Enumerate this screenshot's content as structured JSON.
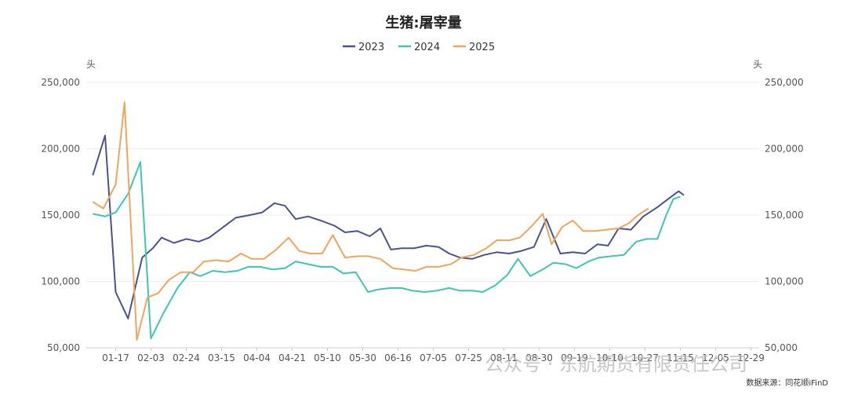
{
  "watermark": "公众号 · 东航期货有限责任公司",
  "source": "数据来源：同花顺iFinD",
  "chart_data": {
    "type": "line",
    "title": "生猪:屠宰量",
    "ylabel_left": "头",
    "ylabel_right": "头",
    "ylim": [
      50000,
      250000
    ],
    "yticks": [
      50000,
      100000,
      150000,
      200000,
      250000
    ],
    "ytick_labels": [
      "50,000",
      "100,000",
      "150,000",
      "200,000",
      "250,000"
    ],
    "x_labels": [
      "01-17",
      "02-03",
      "02-24",
      "03-15",
      "04-04",
      "04-21",
      "05-10",
      "05-30",
      "06-16",
      "07-05",
      "07-25",
      "08-11",
      "08-30",
      "09-19",
      "10-10",
      "10-27",
      "11-15",
      "12-05",
      "12-29"
    ],
    "x_label_positions": [
      1,
      3,
      5,
      7,
      9,
      11,
      13,
      15,
      17,
      19,
      21,
      23,
      25,
      27,
      29,
      31,
      33,
      35,
      37
    ],
    "x_count": 38,
    "grid": true,
    "legend_position": "top-center",
    "series": [
      {
        "name": "2023",
        "color": "#4a5290",
        "points": [
          [
            -0.3,
            180000
          ],
          [
            0.4,
            210000
          ],
          [
            1.0,
            92000
          ],
          [
            1.7,
            72000
          ],
          [
            2.5,
            118000
          ],
          [
            3.1,
            125000
          ],
          [
            3.6,
            133000
          ],
          [
            4.3,
            129000
          ],
          [
            5.0,
            132000
          ],
          [
            5.7,
            130000
          ],
          [
            6.3,
            133000
          ],
          [
            7.1,
            141000
          ],
          [
            7.8,
            148000
          ],
          [
            8.6,
            150000
          ],
          [
            9.3,
            152000
          ],
          [
            10.0,
            159000
          ],
          [
            10.6,
            157000
          ],
          [
            11.2,
            147000
          ],
          [
            11.9,
            149000
          ],
          [
            12.6,
            146000
          ],
          [
            13.4,
            142000
          ],
          [
            14.0,
            137000
          ],
          [
            14.7,
            138000
          ],
          [
            15.4,
            134000
          ],
          [
            16.0,
            140000
          ],
          [
            16.6,
            124000
          ],
          [
            17.2,
            125000
          ],
          [
            17.9,
            125000
          ],
          [
            18.6,
            127000
          ],
          [
            19.3,
            126000
          ],
          [
            19.9,
            121000
          ],
          [
            20.5,
            118000
          ],
          [
            21.2,
            117000
          ],
          [
            21.9,
            120000
          ],
          [
            22.6,
            122000
          ],
          [
            23.3,
            121000
          ],
          [
            24.0,
            123000
          ],
          [
            24.7,
            126000
          ],
          [
            25.4,
            147000
          ],
          [
            26.2,
            121000
          ],
          [
            26.9,
            122000
          ],
          [
            27.6,
            121000
          ],
          [
            28.3,
            128000
          ],
          [
            28.9,
            127000
          ],
          [
            29.5,
            140000
          ],
          [
            30.2,
            139000
          ],
          [
            30.9,
            149000
          ],
          [
            31.7,
            156000
          ],
          [
            32.3,
            162000
          ],
          [
            32.9,
            168000
          ],
          [
            33.2,
            165000
          ]
        ]
      },
      {
        "name": "2024",
        "color": "#3ec5b4",
        "points": [
          [
            -0.3,
            151000
          ],
          [
            0.4,
            149000
          ],
          [
            1.0,
            152000
          ],
          [
            1.7,
            166000
          ],
          [
            2.4,
            190000
          ],
          [
            3.0,
            57000
          ],
          [
            3.7,
            76000
          ],
          [
            4.5,
            95000
          ],
          [
            5.2,
            107000
          ],
          [
            5.8,
            104000
          ],
          [
            6.5,
            108000
          ],
          [
            7.2,
            107000
          ],
          [
            7.9,
            108000
          ],
          [
            8.5,
            111000
          ],
          [
            9.2,
            111000
          ],
          [
            9.9,
            109000
          ],
          [
            10.6,
            110000
          ],
          [
            11.2,
            115000
          ],
          [
            11.9,
            113000
          ],
          [
            12.6,
            111000
          ],
          [
            13.3,
            111000
          ],
          [
            13.9,
            106000
          ],
          [
            14.6,
            107000
          ],
          [
            15.3,
            92000
          ],
          [
            15.9,
            94000
          ],
          [
            16.6,
            95000
          ],
          [
            17.2,
            95000
          ],
          [
            17.8,
            93000
          ],
          [
            18.5,
            92000
          ],
          [
            19.2,
            93000
          ],
          [
            19.9,
            95000
          ],
          [
            20.5,
            93000
          ],
          [
            21.2,
            93000
          ],
          [
            21.8,
            92000
          ],
          [
            22.5,
            97000
          ],
          [
            23.2,
            105000
          ],
          [
            23.8,
            117000
          ],
          [
            24.5,
            104000
          ],
          [
            25.2,
            109000
          ],
          [
            25.8,
            114000
          ],
          [
            26.5,
            113000
          ],
          [
            27.1,
            110000
          ],
          [
            27.8,
            115000
          ],
          [
            28.4,
            118000
          ],
          [
            29.1,
            119000
          ],
          [
            29.8,
            120000
          ],
          [
            30.5,
            130000
          ],
          [
            31.1,
            132000
          ],
          [
            31.7,
            132000
          ],
          [
            32.2,
            150000
          ],
          [
            32.6,
            162000
          ],
          [
            33.0,
            164000
          ]
        ]
      },
      {
        "name": "2025",
        "color": "#f0a55a",
        "points": [
          [
            -0.3,
            160000
          ],
          [
            0.3,
            155000
          ],
          [
            1.0,
            173000
          ],
          [
            1.5,
            235000
          ],
          [
            2.2,
            56000
          ],
          [
            2.8,
            88000
          ],
          [
            3.4,
            91000
          ],
          [
            4.0,
            101000
          ],
          [
            4.7,
            107000
          ],
          [
            5.4,
            107000
          ],
          [
            6.0,
            115000
          ],
          [
            6.7,
            116000
          ],
          [
            7.4,
            115000
          ],
          [
            8.1,
            121000
          ],
          [
            8.7,
            117000
          ],
          [
            9.4,
            117000
          ],
          [
            10.1,
            124000
          ],
          [
            10.8,
            133000
          ],
          [
            11.4,
            123000
          ],
          [
            12.0,
            121000
          ],
          [
            12.7,
            121000
          ],
          [
            13.3,
            135000
          ],
          [
            14.0,
            118000
          ],
          [
            14.7,
            119000
          ],
          [
            15.3,
            119000
          ],
          [
            16.0,
            117000
          ],
          [
            16.7,
            110000
          ],
          [
            17.3,
            109000
          ],
          [
            18.0,
            108000
          ],
          [
            18.6,
            111000
          ],
          [
            19.3,
            111000
          ],
          [
            20.0,
            113000
          ],
          [
            20.6,
            118000
          ],
          [
            21.3,
            120000
          ],
          [
            22.0,
            125000
          ],
          [
            22.6,
            131000
          ],
          [
            23.3,
            131000
          ],
          [
            23.9,
            133000
          ],
          [
            24.6,
            142000
          ],
          [
            25.2,
            151000
          ],
          [
            25.7,
            128000
          ],
          [
            26.3,
            141000
          ],
          [
            26.9,
            146000
          ],
          [
            27.5,
            138000
          ],
          [
            28.2,
            138000
          ],
          [
            28.8,
            139000
          ],
          [
            29.5,
            140000
          ],
          [
            30.1,
            144000
          ],
          [
            30.6,
            150000
          ],
          [
            31.2,
            155000
          ]
        ]
      }
    ]
  }
}
